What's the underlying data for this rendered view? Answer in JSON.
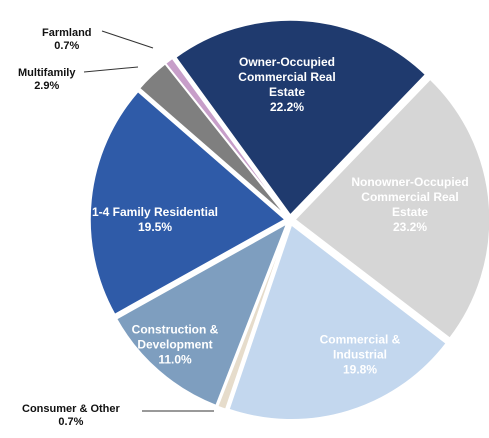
{
  "chart_data": {
    "type": "pie",
    "categories": [
      "Owner-Occupied Commercial Real Estate",
      "Nonowner-Occupied Commercial Real Estate",
      "Commercial & Industrial",
      "Consumer & Other",
      "Construction & Development",
      "1-4 Family Residential",
      "Multifamily",
      "Farmland"
    ],
    "values": [
      22.2,
      23.2,
      19.8,
      0.7,
      11.0,
      19.5,
      2.9,
      0.7
    ],
    "value_labels": [
      "22.2%",
      "23.2%",
      "19.8%",
      "0.7%",
      "11.0%",
      "19.5%",
      "2.9%",
      "0.7%"
    ],
    "colors": [
      "#1f3a6e",
      "#d6d6d6",
      "#c3d7ee",
      "#e6dccb",
      "#7e9ebf",
      "#2f5ba8",
      "#7f7f7f",
      "#c79ec9"
    ]
  }
}
